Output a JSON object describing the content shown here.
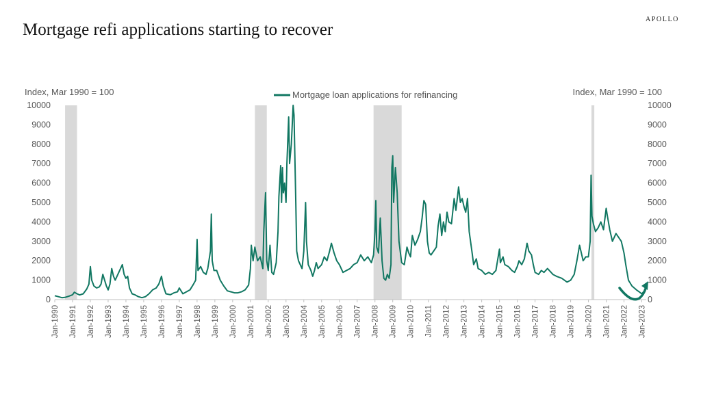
{
  "header": {
    "title": "Mortgage refi applications starting to recover",
    "brand": "APOLLO"
  },
  "colors": {
    "series": "#117762",
    "recession": "#d9d9d9",
    "text": "#555555"
  },
  "chart_data": {
    "type": "line",
    "title": "Mortgage refi applications starting to recover",
    "y_left_label": "Index, Mar 1990 = 100",
    "y_right_label": "Index, Mar 1990 = 100",
    "ylim": [
      0,
      10000
    ],
    "y_ticks": [
      0,
      1000,
      2000,
      3000,
      4000,
      5000,
      6000,
      7000,
      8000,
      9000,
      10000
    ],
    "x_range": [
      1990.0,
      2023.25
    ],
    "x_tick_labels": [
      "Jan-1990",
      "Jan-1991",
      "Jan-1992",
      "Jan-1993",
      "Jan-1994",
      "Jan-1995",
      "Jan-1996",
      "Jan-1997",
      "Jan-1998",
      "Jan-1999",
      "Jan-2000",
      "Jan-2001",
      "Jan-2002",
      "Jan-2003",
      "Jan-2004",
      "Jan-2005",
      "Jan-2006",
      "Jan-2007",
      "Jan-2008",
      "Jan-2009",
      "Jan-2010",
      "Jan-2011",
      "Jan-2012",
      "Jan-2013",
      "Jan-2014",
      "Jan-2015",
      "Jan-2016",
      "Jan-2017",
      "Jan-2018",
      "Jan-2019",
      "Jan-2020",
      "Jan-2021",
      "Jan-2022",
      "Jan-2023"
    ],
    "grid": false,
    "legend_position": "top-center",
    "recessions": [
      [
        1990.58,
        1991.25
      ],
      [
        2001.25,
        2001.92
      ],
      [
        2007.92,
        2009.5
      ],
      [
        2020.17,
        2020.33
      ]
    ],
    "series": [
      {
        "name": "Mortgage loan applications for refinancing",
        "points": [
          [
            1990.0,
            200
          ],
          [
            1990.2,
            150
          ],
          [
            1990.4,
            100
          ],
          [
            1990.6,
            120
          ],
          [
            1990.8,
            180
          ],
          [
            1991.0,
            250
          ],
          [
            1991.1,
            380
          ],
          [
            1991.25,
            300
          ],
          [
            1991.4,
            240
          ],
          [
            1991.6,
            300
          ],
          [
            1991.8,
            550
          ],
          [
            1991.92,
            800
          ],
          [
            1992.0,
            1700
          ],
          [
            1992.08,
            1000
          ],
          [
            1992.2,
            700
          ],
          [
            1992.35,
            600
          ],
          [
            1992.5,
            650
          ],
          [
            1992.6,
            800
          ],
          [
            1992.7,
            1300
          ],
          [
            1992.8,
            1000
          ],
          [
            1992.9,
            700
          ],
          [
            1993.0,
            500
          ],
          [
            1993.1,
            800
          ],
          [
            1993.2,
            1600
          ],
          [
            1993.3,
            1200
          ],
          [
            1993.4,
            1000
          ],
          [
            1993.55,
            1300
          ],
          [
            1993.7,
            1600
          ],
          [
            1993.8,
            1800
          ],
          [
            1993.9,
            1300
          ],
          [
            1994.0,
            1100
          ],
          [
            1994.1,
            1200
          ],
          [
            1994.2,
            600
          ],
          [
            1994.35,
            300
          ],
          [
            1994.5,
            250
          ],
          [
            1994.7,
            150
          ],
          [
            1994.9,
            100
          ],
          [
            1995.1,
            150
          ],
          [
            1995.3,
            300
          ],
          [
            1995.5,
            500
          ],
          [
            1995.7,
            600
          ],
          [
            1995.85,
            800
          ],
          [
            1996.0,
            1200
          ],
          [
            1996.1,
            700
          ],
          [
            1996.25,
            300
          ],
          [
            1996.5,
            250
          ],
          [
            1996.7,
            350
          ],
          [
            1996.9,
            400
          ],
          [
            1997.0,
            600
          ],
          [
            1997.2,
            300
          ],
          [
            1997.4,
            400
          ],
          [
            1997.6,
            500
          ],
          [
            1997.8,
            800
          ],
          [
            1997.92,
            1000
          ],
          [
            1998.0,
            3100
          ],
          [
            1998.05,
            1500
          ],
          [
            1998.2,
            1700
          ],
          [
            1998.35,
            1400
          ],
          [
            1998.5,
            1300
          ],
          [
            1998.6,
            1600
          ],
          [
            1998.75,
            2500
          ],
          [
            1998.8,
            4400
          ],
          [
            1998.85,
            2000
          ],
          [
            1998.95,
            1500
          ],
          [
            1999.1,
            1500
          ],
          [
            1999.3,
            1000
          ],
          [
            1999.5,
            700
          ],
          [
            1999.7,
            450
          ],
          [
            1999.9,
            400
          ],
          [
            2000.1,
            350
          ],
          [
            2000.3,
            350
          ],
          [
            2000.5,
            400
          ],
          [
            2000.7,
            500
          ],
          [
            2000.9,
            750
          ],
          [
            2001.0,
            1600
          ],
          [
            2001.05,
            2800
          ],
          [
            2001.15,
            2000
          ],
          [
            2001.25,
            2700
          ],
          [
            2001.4,
            2000
          ],
          [
            2001.55,
            2200
          ],
          [
            2001.7,
            1600
          ],
          [
            2001.75,
            3500
          ],
          [
            2001.85,
            5500
          ],
          [
            2001.92,
            2000
          ],
          [
            2002.0,
            1500
          ],
          [
            2002.1,
            2800
          ],
          [
            2002.2,
            1400
          ],
          [
            2002.3,
            1300
          ],
          [
            2002.45,
            1900
          ],
          [
            2002.55,
            3500
          ],
          [
            2002.6,
            5300
          ],
          [
            2002.7,
            6900
          ],
          [
            2002.75,
            5000
          ],
          [
            2002.8,
            6800
          ],
          [
            2002.85,
            5500
          ],
          [
            2002.92,
            6000
          ],
          [
            2003.0,
            5000
          ],
          [
            2003.05,
            7000
          ],
          [
            2003.15,
            9400
          ],
          [
            2003.2,
            7000
          ],
          [
            2003.3,
            8000
          ],
          [
            2003.4,
            10000
          ],
          [
            2003.45,
            9500
          ],
          [
            2003.55,
            5000
          ],
          [
            2003.6,
            2500
          ],
          [
            2003.7,
            2000
          ],
          [
            2003.8,
            1800
          ],
          [
            2003.9,
            1600
          ],
          [
            2004.0,
            2500
          ],
          [
            2004.1,
            5000
          ],
          [
            2004.15,
            3000
          ],
          [
            2004.25,
            1800
          ],
          [
            2004.4,
            1500
          ],
          [
            2004.5,
            1200
          ],
          [
            2004.6,
            1500
          ],
          [
            2004.7,
            1900
          ],
          [
            2004.8,
            1600
          ],
          [
            2004.9,
            1700
          ],
          [
            2005.0,
            1800
          ],
          [
            2005.15,
            2200
          ],
          [
            2005.3,
            2000
          ],
          [
            2005.45,
            2500
          ],
          [
            2005.55,
            2900
          ],
          [
            2005.7,
            2400
          ],
          [
            2005.85,
            2000
          ],
          [
            2006.0,
            1800
          ],
          [
            2006.2,
            1400
          ],
          [
            2006.4,
            1500
          ],
          [
            2006.6,
            1600
          ],
          [
            2006.8,
            1800
          ],
          [
            2007.0,
            1900
          ],
          [
            2007.2,
            2300
          ],
          [
            2007.4,
            2000
          ],
          [
            2007.6,
            2200
          ],
          [
            2007.8,
            1900
          ],
          [
            2007.92,
            2300
          ],
          [
            2008.0,
            3500
          ],
          [
            2008.05,
            5100
          ],
          [
            2008.1,
            2700
          ],
          [
            2008.2,
            2400
          ],
          [
            2008.3,
            4200
          ],
          [
            2008.4,
            2000
          ],
          [
            2008.5,
            1100
          ],
          [
            2008.6,
            1000
          ],
          [
            2008.7,
            1300
          ],
          [
            2008.8,
            1100
          ],
          [
            2008.9,
            1800
          ],
          [
            2008.95,
            6800
          ],
          [
            2009.0,
            7400
          ],
          [
            2009.05,
            5000
          ],
          [
            2009.15,
            6800
          ],
          [
            2009.25,
            5500
          ],
          [
            2009.35,
            3000
          ],
          [
            2009.5,
            1900
          ],
          [
            2009.65,
            1800
          ],
          [
            2009.8,
            2700
          ],
          [
            2009.9,
            2400
          ],
          [
            2010.0,
            2200
          ],
          [
            2010.1,
            3300
          ],
          [
            2010.25,
            2800
          ],
          [
            2010.4,
            3100
          ],
          [
            2010.55,
            3500
          ],
          [
            2010.65,
            4200
          ],
          [
            2010.75,
            5100
          ],
          [
            2010.85,
            4900
          ],
          [
            2010.95,
            3000
          ],
          [
            2011.05,
            2400
          ],
          [
            2011.15,
            2300
          ],
          [
            2011.3,
            2500
          ],
          [
            2011.45,
            2700
          ],
          [
            2011.55,
            3800
          ],
          [
            2011.65,
            4400
          ],
          [
            2011.75,
            3300
          ],
          [
            2011.85,
            4000
          ],
          [
            2011.95,
            3500
          ],
          [
            2012.05,
            4500
          ],
          [
            2012.15,
            4000
          ],
          [
            2012.3,
            3900
          ],
          [
            2012.45,
            5200
          ],
          [
            2012.55,
            4600
          ],
          [
            2012.7,
            5800
          ],
          [
            2012.8,
            5000
          ],
          [
            2012.9,
            5200
          ],
          [
            2013.0,
            4800
          ],
          [
            2013.1,
            4500
          ],
          [
            2013.2,
            5200
          ],
          [
            2013.3,
            3500
          ],
          [
            2013.45,
            2500
          ],
          [
            2013.55,
            1800
          ],
          [
            2013.7,
            2100
          ],
          [
            2013.8,
            1600
          ],
          [
            2014.0,
            1500
          ],
          [
            2014.2,
            1300
          ],
          [
            2014.4,
            1400
          ],
          [
            2014.6,
            1300
          ],
          [
            2014.8,
            1500
          ],
          [
            2015.0,
            2600
          ],
          [
            2015.05,
            1900
          ],
          [
            2015.2,
            2200
          ],
          [
            2015.3,
            1800
          ],
          [
            2015.5,
            1700
          ],
          [
            2015.7,
            1500
          ],
          [
            2015.85,
            1400
          ],
          [
            2016.0,
            1700
          ],
          [
            2016.1,
            2000
          ],
          [
            2016.25,
            1800
          ],
          [
            2016.4,
            2100
          ],
          [
            2016.55,
            2900
          ],
          [
            2016.65,
            2500
          ],
          [
            2016.8,
            2300
          ],
          [
            2016.9,
            1800
          ],
          [
            2017.0,
            1400
          ],
          [
            2017.2,
            1300
          ],
          [
            2017.35,
            1500
          ],
          [
            2017.5,
            1400
          ],
          [
            2017.7,
            1600
          ],
          [
            2017.9,
            1400
          ],
          [
            2018.0,
            1300
          ],
          [
            2018.2,
            1200
          ],
          [
            2018.5,
            1100
          ],
          [
            2018.8,
            900
          ],
          [
            2019.0,
            1000
          ],
          [
            2019.2,
            1300
          ],
          [
            2019.35,
            2000
          ],
          [
            2019.5,
            2800
          ],
          [
            2019.6,
            2400
          ],
          [
            2019.7,
            2000
          ],
          [
            2019.85,
            2200
          ],
          [
            2020.0,
            2200
          ],
          [
            2020.1,
            3000
          ],
          [
            2020.15,
            6400
          ],
          [
            2020.2,
            4300
          ],
          [
            2020.28,
            3900
          ],
          [
            2020.4,
            3500
          ],
          [
            2020.55,
            3700
          ],
          [
            2020.7,
            4000
          ],
          [
            2020.85,
            3600
          ],
          [
            2021.0,
            4700
          ],
          [
            2021.05,
            4400
          ],
          [
            2021.2,
            3600
          ],
          [
            2021.35,
            3000
          ],
          [
            2021.55,
            3400
          ],
          [
            2021.7,
            3200
          ],
          [
            2021.85,
            3000
          ],
          [
            2022.0,
            2400
          ],
          [
            2022.1,
            1800
          ],
          [
            2022.25,
            1000
          ],
          [
            2022.45,
            700
          ],
          [
            2022.7,
            500
          ],
          [
            2022.85,
            400
          ],
          [
            2023.0,
            300
          ],
          [
            2023.1,
            400
          ]
        ]
      }
    ],
    "annotation": "green curved arrow indicating recovery"
  }
}
